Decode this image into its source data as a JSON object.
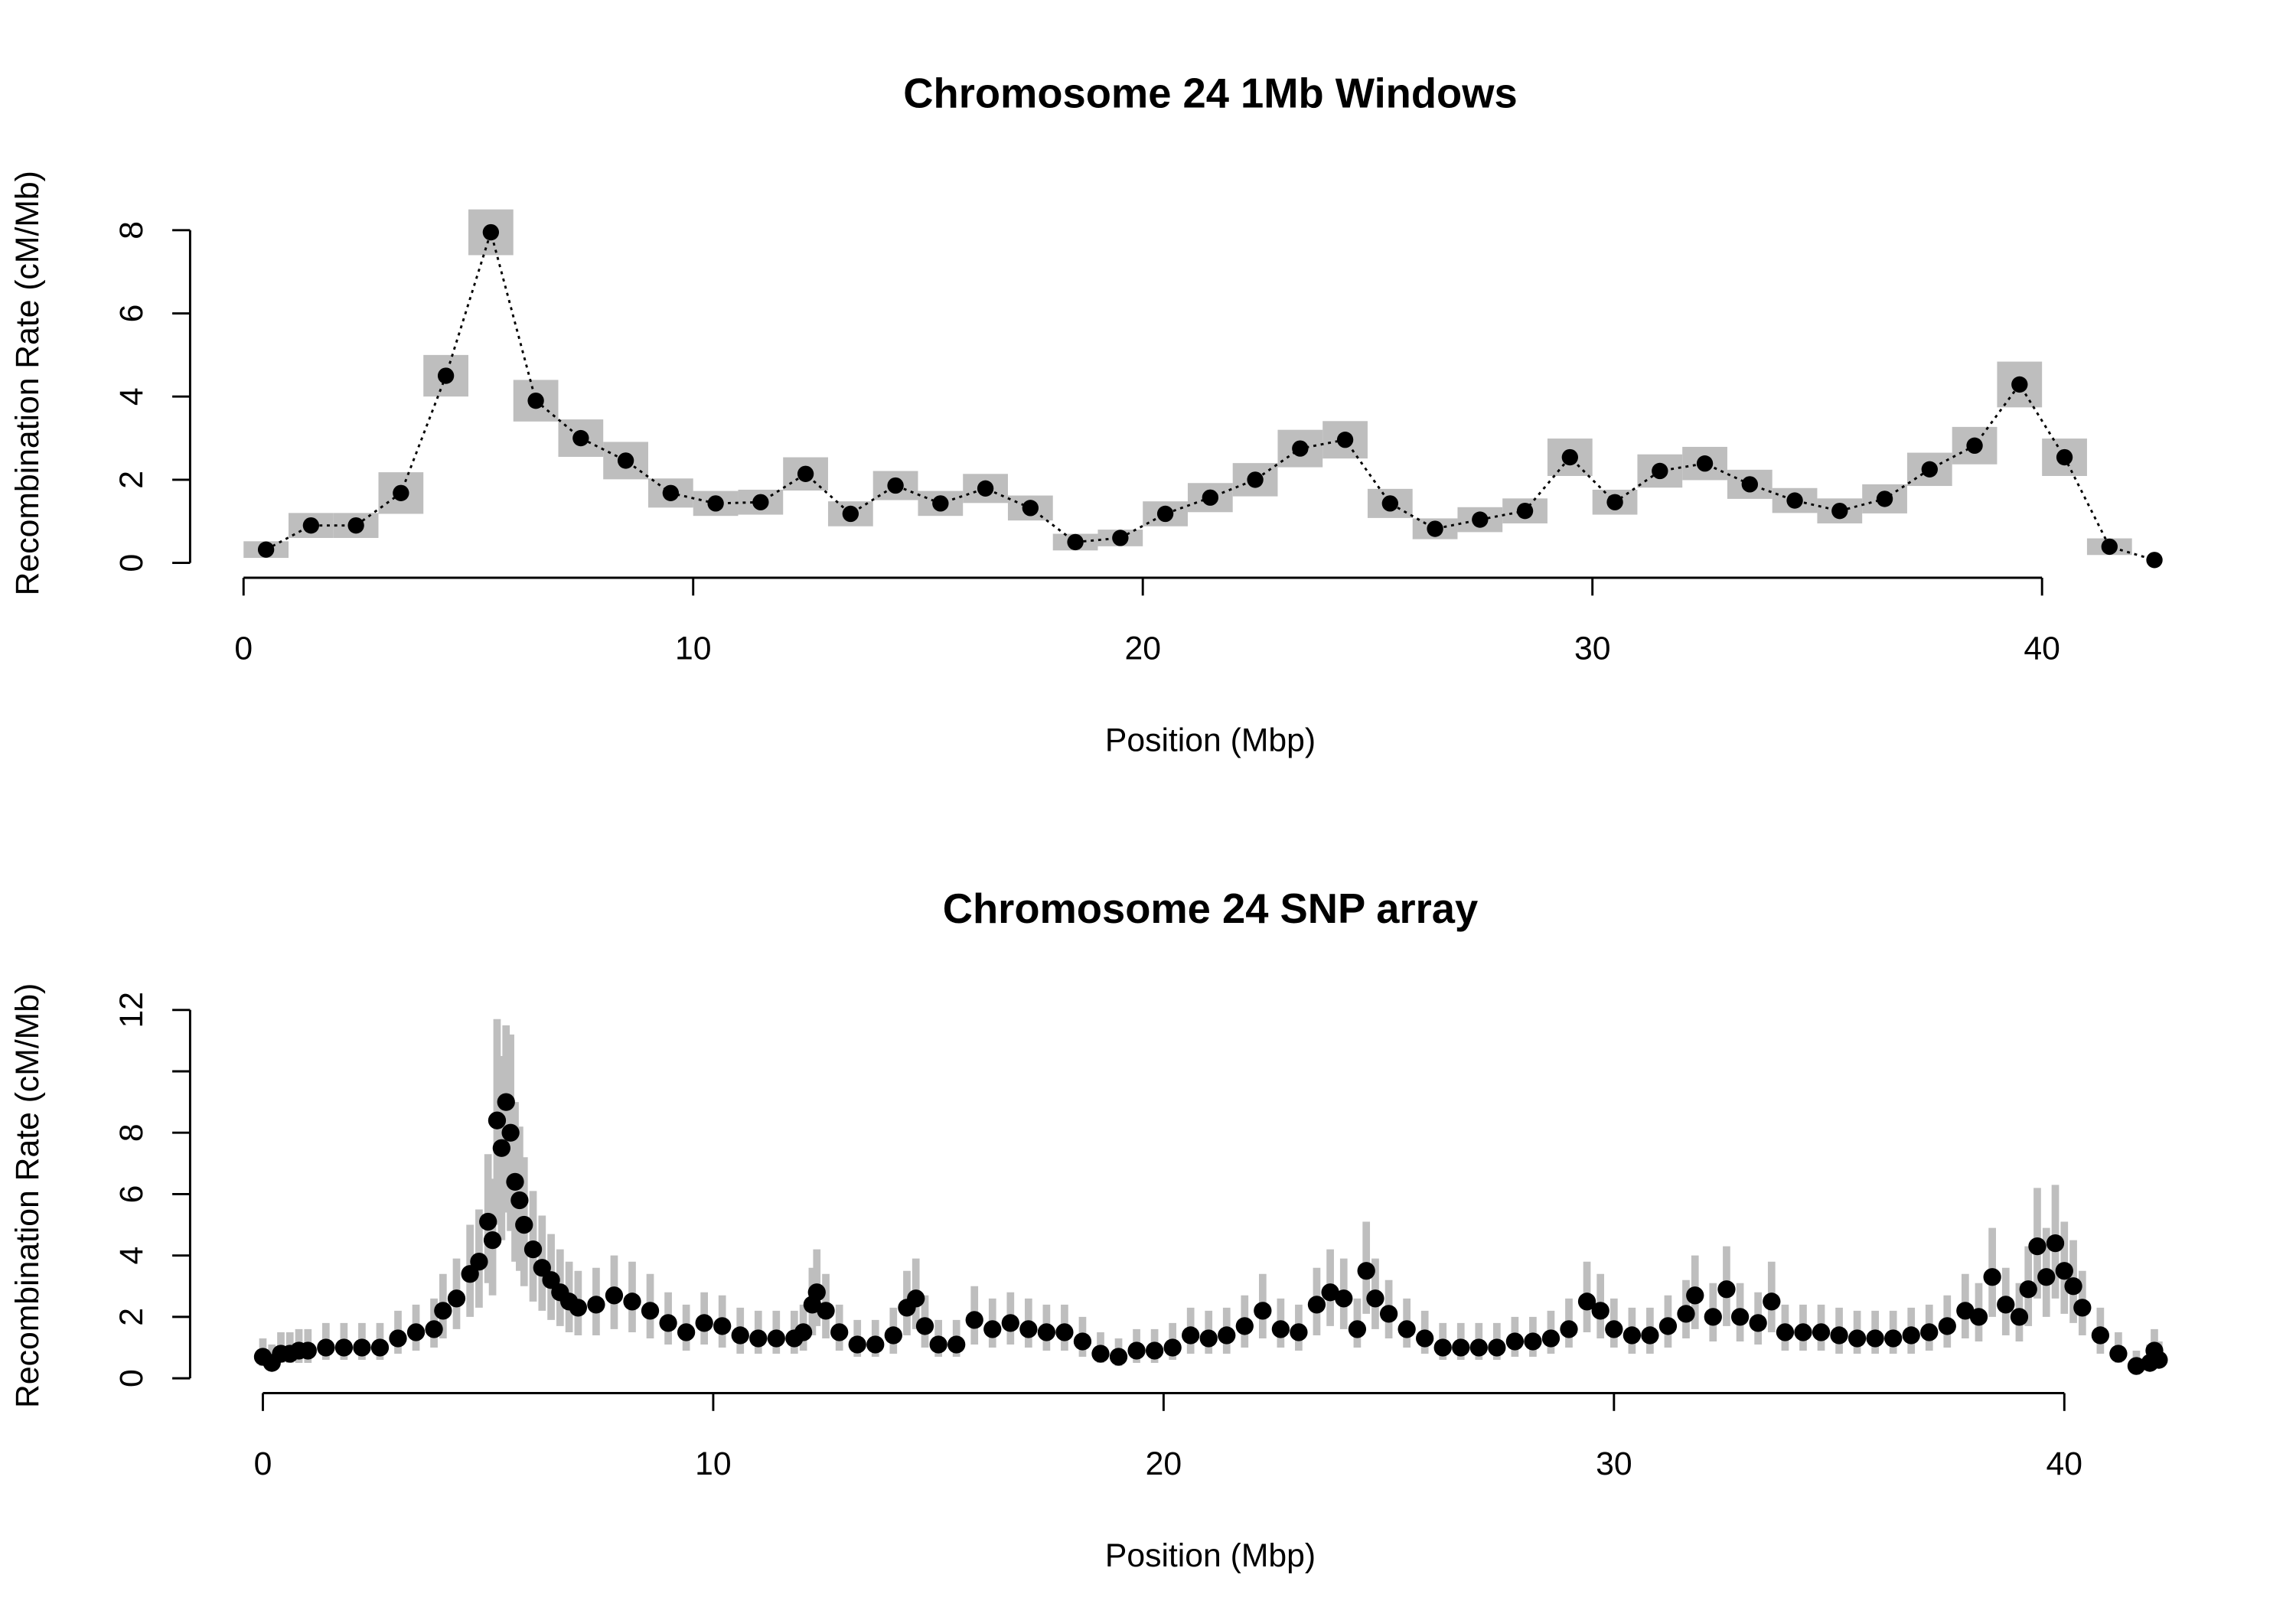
{
  "chart_data": [
    {
      "type": "line",
      "title": "Chromosome 24 1Mb Windows",
      "xlabel": "Position (Mbp)",
      "ylabel": "Recombination Rate (cM/Mb)",
      "x": [
        0.5,
        1.5,
        2.5,
        3.5,
        4.5,
        5.5,
        6.5,
        7.5,
        8.5,
        9.5,
        10.5,
        11.5,
        12.5,
        13.5,
        14.5,
        15.5,
        16.5,
        17.5,
        18.5,
        19.5,
        20.5,
        21.5,
        22.5,
        23.5,
        24.5,
        25.5,
        26.5,
        27.5,
        28.5,
        29.5,
        30.5,
        31.5,
        32.5,
        33.5,
        34.5,
        35.5,
        36.5,
        37.5,
        38.5,
        39.5,
        40.5,
        41.5,
        42.5
      ],
      "values": [
        0.32,
        0.9,
        0.9,
        1.68,
        4.5,
        7.95,
        3.9,
        3.0,
        2.46,
        1.68,
        1.43,
        1.46,
        2.14,
        1.18,
        1.86,
        1.43,
        1.79,
        1.32,
        0.5,
        0.6,
        1.18,
        1.57,
        2.0,
        2.75,
        2.96,
        1.43,
        0.82,
        1.04,
        1.25,
        2.54,
        1.46,
        2.21,
        2.39,
        1.89,
        1.5,
        1.25,
        1.54,
        2.25,
        2.82,
        4.29,
        2.54,
        0.39,
        0.07
      ],
      "errors": [
        0.2,
        0.3,
        0.3,
        0.5,
        0.5,
        0.55,
        0.5,
        0.45,
        0.45,
        0.35,
        0.3,
        0.3,
        0.4,
        0.3,
        0.35,
        0.3,
        0.35,
        0.3,
        0.2,
        0.2,
        0.3,
        0.35,
        0.4,
        0.45,
        0.45,
        0.35,
        0.25,
        0.3,
        0.3,
        0.45,
        0.3,
        0.4,
        0.4,
        0.35,
        0.3,
        0.3,
        0.35,
        0.4,
        0.45,
        0.55,
        0.45,
        0.2,
        null
      ],
      "color": "#000000",
      "error_color": "#bebebe",
      "line_style": "dotted",
      "xlim": [
        0,
        40
      ],
      "xticks": [
        0,
        10,
        20,
        30,
        40
      ],
      "ylim": [
        0,
        8
      ],
      "yticks": [
        0,
        2,
        4,
        6,
        8
      ]
    },
    {
      "type": "scatter",
      "title": "Chromosome 24 SNP array",
      "xlabel": "Position (Mbp)",
      "ylabel": "Recombination Rate (cM/Mb)",
      "x": [
        0.0,
        0.2,
        0.4,
        0.6,
        0.8,
        1.0,
        1.4,
        1.8,
        2.2,
        2.6,
        3.0,
        3.4,
        3.8,
        4.0,
        4.3,
        4.6,
        4.8,
        5.0,
        5.1,
        5.2,
        5.3,
        5.4,
        5.5,
        5.6,
        5.7,
        5.8,
        6.0,
        6.2,
        6.4,
        6.6,
        6.8,
        7.0,
        7.4,
        7.8,
        8.2,
        8.6,
        9.0,
        9.4,
        9.8,
        10.2,
        10.6,
        11.0,
        11.4,
        11.8,
        12.0,
        12.2,
        12.3,
        12.5,
        12.8,
        13.2,
        13.6,
        14.0,
        14.3,
        14.5,
        14.7,
        15.0,
        15.4,
        15.8,
        16.2,
        16.6,
        17.0,
        17.4,
        17.8,
        18.2,
        18.6,
        19.0,
        19.4,
        19.8,
        20.2,
        20.6,
        21.0,
        21.4,
        21.8,
        22.2,
        22.6,
        23.0,
        23.4,
        23.7,
        24.0,
        24.3,
        24.5,
        24.7,
        25.0,
        25.4,
        25.8,
        26.2,
        26.6,
        27.0,
        27.4,
        27.8,
        28.2,
        28.6,
        29.0,
        29.4,
        29.7,
        30.0,
        30.4,
        30.8,
        31.2,
        31.6,
        31.8,
        32.2,
        32.5,
        32.8,
        33.2,
        33.5,
        33.8,
        34.2,
        34.6,
        35.0,
        35.4,
        35.8,
        36.2,
        36.6,
        37.0,
        37.4,
        37.8,
        38.1,
        38.4,
        38.7,
        39.0,
        39.2,
        39.4,
        39.6,
        39.8,
        40.0,
        40.2,
        40.4,
        40.8,
        41.2,
        41.6,
        41.9,
        42.0,
        42.1
      ],
      "values": [
        0.7,
        0.5,
        0.8,
        0.8,
        0.9,
        0.9,
        1.0,
        1.0,
        1.0,
        1.0,
        1.3,
        1.5,
        1.6,
        2.2,
        2.6,
        3.4,
        3.8,
        5.1,
        4.5,
        8.4,
        7.5,
        9.0,
        8.0,
        6.4,
        5.8,
        5.0,
        4.2,
        3.6,
        3.2,
        2.8,
        2.5,
        2.3,
        2.4,
        2.7,
        2.5,
        2.2,
        1.8,
        1.5,
        1.8,
        1.7,
        1.4,
        1.3,
        1.3,
        1.3,
        1.5,
        2.4,
        2.8,
        2.2,
        1.5,
        1.1,
        1.1,
        1.4,
        2.3,
        2.6,
        1.7,
        1.1,
        1.1,
        1.9,
        1.6,
        1.8,
        1.6,
        1.5,
        1.5,
        1.2,
        0.8,
        0.7,
        0.9,
        0.9,
        1.0,
        1.4,
        1.3,
        1.4,
        1.7,
        2.2,
        1.6,
        1.5,
        2.4,
        2.8,
        2.6,
        1.6,
        3.5,
        2.6,
        2.1,
        1.6,
        1.3,
        1.0,
        1.0,
        1.0,
        1.0,
        1.2,
        1.2,
        1.3,
        1.6,
        2.5,
        2.2,
        1.6,
        1.4,
        1.4,
        1.7,
        2.1,
        2.7,
        2.0,
        2.9,
        2.0,
        1.8,
        2.5,
        1.5,
        1.5,
        1.5,
        1.4,
        1.3,
        1.3,
        1.3,
        1.4,
        1.5,
        1.7,
        2.2,
        2.0,
        3.3,
        2.4,
        2.0,
        2.9,
        4.3,
        3.3,
        4.4,
        3.5,
        3.0,
        2.3,
        1.4,
        0.8,
        0.4,
        0.5,
        0.9,
        0.6
      ],
      "lower": [
        0.4,
        0.3,
        0.5,
        0.5,
        0.5,
        0.5,
        0.6,
        0.6,
        0.6,
        0.6,
        0.8,
        0.9,
        1.0,
        1.3,
        1.6,
        2.0,
        2.3,
        3.1,
        2.7,
        5.0,
        4.5,
        5.4,
        4.8,
        3.8,
        3.5,
        3.0,
        2.5,
        2.2,
        1.9,
        1.7,
        1.5,
        1.4,
        1.4,
        1.6,
        1.5,
        1.3,
        1.1,
        0.9,
        1.1,
        1.0,
        0.8,
        0.8,
        0.8,
        0.8,
        0.9,
        1.4,
        1.7,
        1.3,
        0.9,
        0.7,
        0.7,
        0.8,
        1.4,
        1.6,
        1.0,
        0.7,
        0.7,
        1.1,
        1.0,
        1.1,
        1.0,
        0.9,
        0.9,
        0.7,
        0.5,
        0.4,
        0.5,
        0.5,
        0.6,
        0.8,
        0.8,
        0.8,
        1.0,
        1.3,
        1.0,
        0.9,
        1.4,
        1.7,
        1.6,
        1.0,
        2.1,
        1.6,
        1.3,
        1.0,
        0.8,
        0.6,
        0.6,
        0.6,
        0.6,
        0.7,
        0.7,
        0.8,
        1.0,
        1.5,
        1.3,
        1.0,
        0.8,
        0.8,
        1.0,
        1.3,
        1.6,
        1.2,
        1.7,
        1.2,
        1.1,
        1.5,
        0.9,
        0.9,
        0.9,
        0.8,
        0.8,
        0.8,
        0.8,
        0.8,
        0.9,
        1.0,
        1.3,
        1.2,
        2.0,
        1.4,
        1.2,
        1.7,
        2.6,
        2.0,
        2.6,
        2.1,
        1.8,
        1.4,
        0.8,
        0.5,
        0.2,
        0.3,
        0.5,
        0.4
      ],
      "upper": [
        1.3,
        1.1,
        1.5,
        1.5,
        1.6,
        1.6,
        1.8,
        1.8,
        1.8,
        1.8,
        2.2,
        2.4,
        2.6,
        3.4,
        3.9,
        5.0,
        5.5,
        7.3,
        6.5,
        11.7,
        10.5,
        11.5,
        11.2,
        9.0,
        8.2,
        7.2,
        6.1,
        5.3,
        4.7,
        4.2,
        3.8,
        3.5,
        3.6,
        4.0,
        3.8,
        3.4,
        2.8,
        2.4,
        2.8,
        2.7,
        2.3,
        2.2,
        2.2,
        2.2,
        2.4,
        3.6,
        4.2,
        3.4,
        2.4,
        1.9,
        1.9,
        2.3,
        3.5,
        3.9,
        2.7,
        1.9,
        1.9,
        3.0,
        2.6,
        2.8,
        2.6,
        2.4,
        2.4,
        2.0,
        1.5,
        1.3,
        1.6,
        1.6,
        1.8,
        2.3,
        2.2,
        2.3,
        2.7,
        3.4,
        2.6,
        2.4,
        3.6,
        4.2,
        3.9,
        2.6,
        5.1,
        3.9,
        3.2,
        2.6,
        2.2,
        1.8,
        1.8,
        1.8,
        1.8,
        2.0,
        2.0,
        2.2,
        2.6,
        3.8,
        3.4,
        2.6,
        2.3,
        2.3,
        2.7,
        3.2,
        4.0,
        3.1,
        4.3,
        3.1,
        2.8,
        3.8,
        2.4,
        2.4,
        2.4,
        2.3,
        2.2,
        2.2,
        2.2,
        2.3,
        2.4,
        2.7,
        3.4,
        3.1,
        4.9,
        3.6,
        3.1,
        4.3,
        6.2,
        4.9,
        6.3,
        5.1,
        4.5,
        3.5,
        2.3,
        1.5,
        0.9,
        1.1,
        1.6,
        1.2
      ],
      "color": "#000000",
      "range_color": "#bebebe",
      "xlim": [
        0,
        40
      ],
      "xticks": [
        0,
        10,
        20,
        30,
        40
      ],
      "ylim": [
        0,
        12
      ],
      "yticks": [
        0,
        2,
        4,
        6,
        8,
        {
          "value": 10,
          "label": null
        },
        12
      ]
    }
  ]
}
